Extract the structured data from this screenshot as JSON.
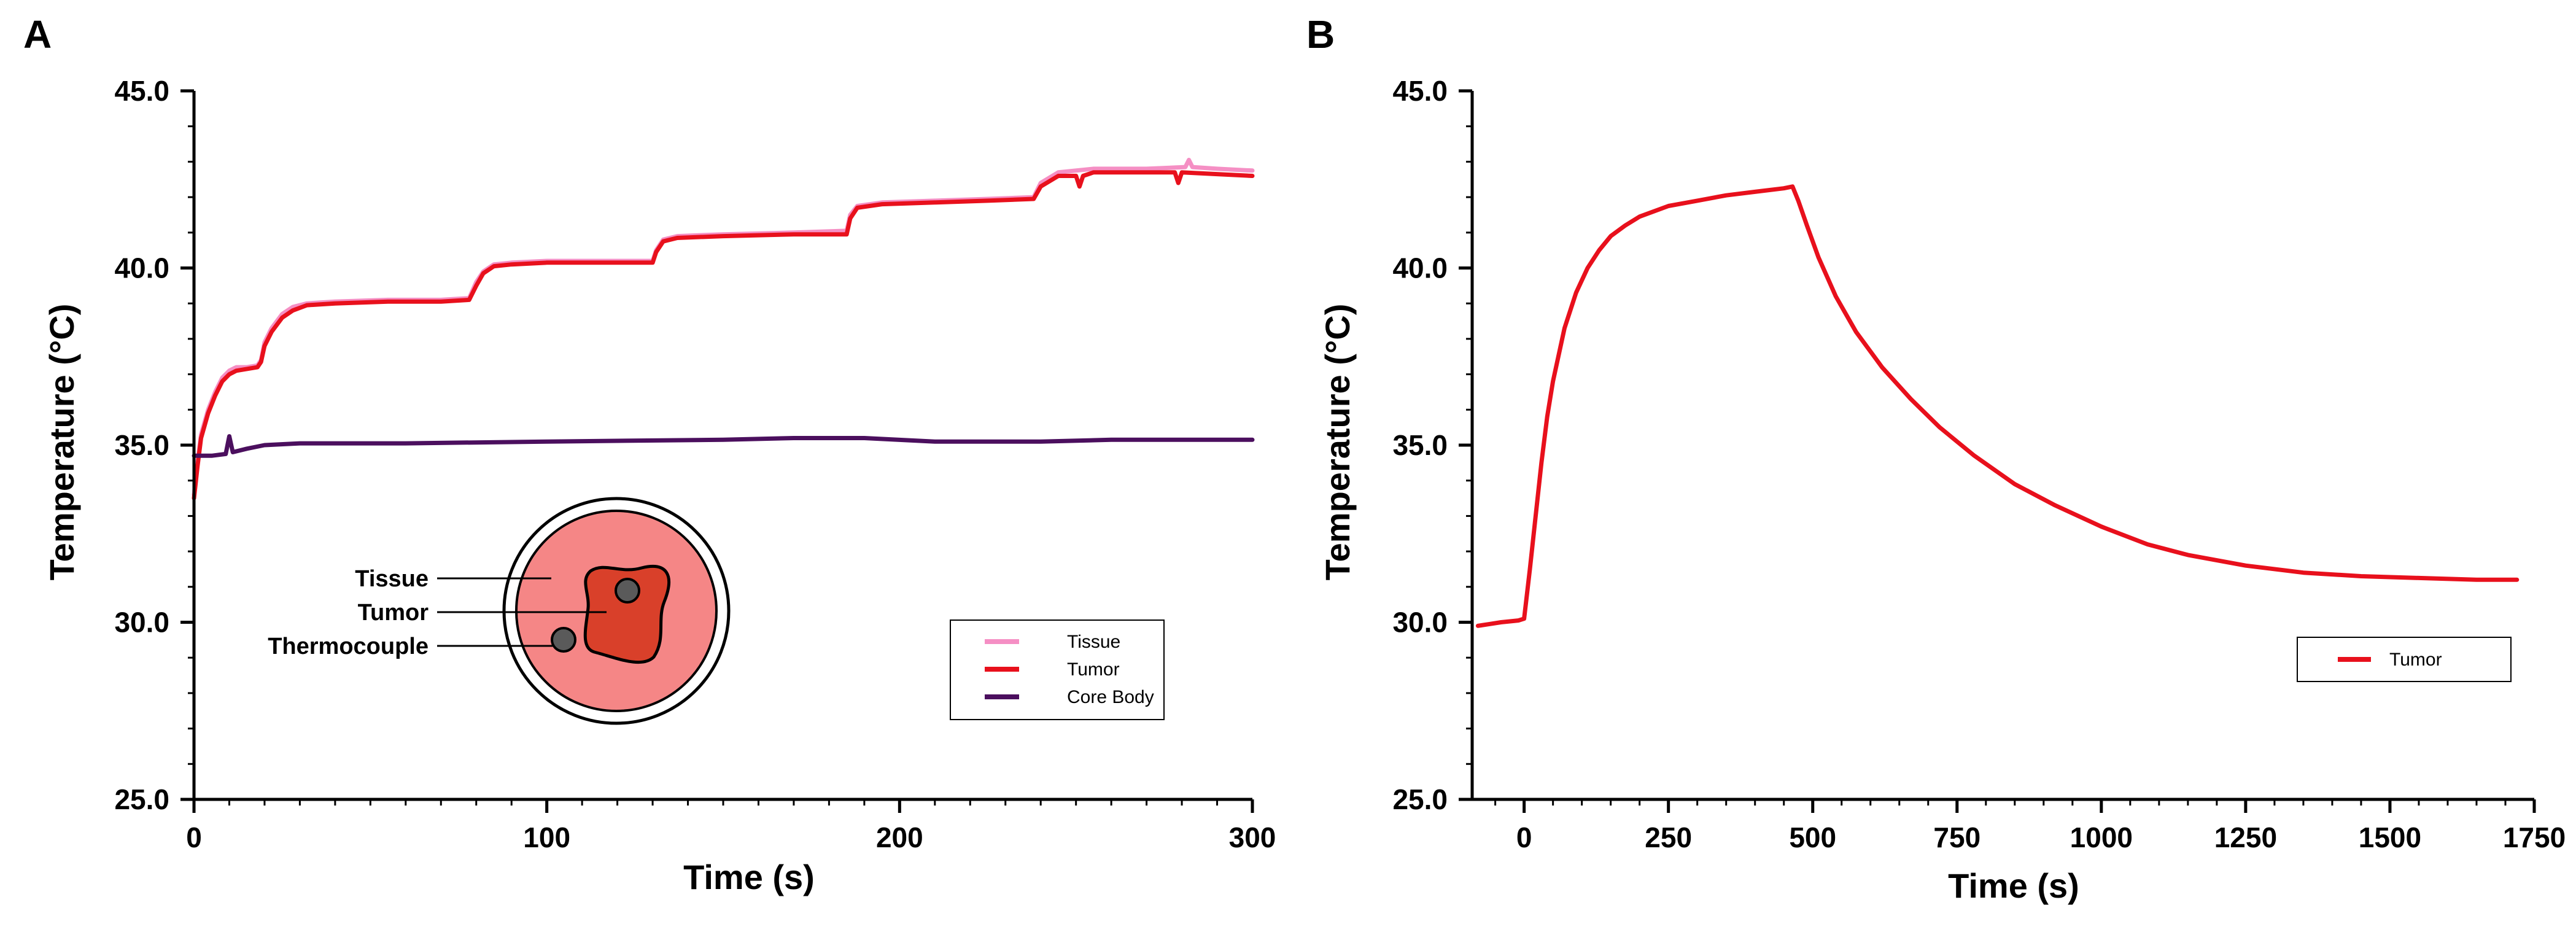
{
  "chart_data": [
    {
      "panel": "A",
      "type": "line",
      "xlabel": "Time (s)",
      "ylabel": "Temperature (°C)",
      "xlim": [
        0,
        300
      ],
      "ylim": [
        25,
        45
      ],
      "xticks": [
        0,
        100,
        200,
        300
      ],
      "xtick_labels": [
        "0",
        "100",
        "200",
        "300"
      ],
      "yticks": [
        25,
        30,
        35,
        40,
        45
      ],
      "ytick_labels": [
        "25.0",
        "30.0",
        "35.0",
        "40.0",
        "45.0"
      ],
      "legend_position": "bottom-right",
      "series": [
        {
          "name": "Tissue",
          "color": "#f58fc4",
          "points": [
            [
              0,
              33.6
            ],
            [
              1,
              34.5
            ],
            [
              2,
              35.3
            ],
            [
              4,
              36.0
            ],
            [
              6,
              36.5
            ],
            [
              8,
              36.9
            ],
            [
              10,
              37.1
            ],
            [
              12,
              37.2
            ],
            [
              15,
              37.2
            ],
            [
              18,
              37.25
            ],
            [
              19,
              37.4
            ],
            [
              20,
              37.9
            ],
            [
              22,
              38.3
            ],
            [
              25,
              38.7
            ],
            [
              28,
              38.9
            ],
            [
              32,
              39.0
            ],
            [
              40,
              39.05
            ],
            [
              55,
              39.1
            ],
            [
              70,
              39.1
            ],
            [
              78,
              39.15
            ],
            [
              80,
              39.6
            ],
            [
              82,
              39.9
            ],
            [
              85,
              40.1
            ],
            [
              90,
              40.15
            ],
            [
              100,
              40.2
            ],
            [
              115,
              40.2
            ],
            [
              130,
              40.2
            ],
            [
              131,
              40.5
            ],
            [
              133,
              40.8
            ],
            [
              137,
              40.9
            ],
            [
              150,
              40.95
            ],
            [
              170,
              41.0
            ],
            [
              185,
              41.05
            ],
            [
              186,
              41.5
            ],
            [
              188,
              41.75
            ],
            [
              195,
              41.85
            ],
            [
              210,
              41.9
            ],
            [
              225,
              41.95
            ],
            [
              238,
              42.0
            ],
            [
              240,
              42.4
            ],
            [
              245,
              42.7
            ],
            [
              255,
              42.8
            ],
            [
              270,
              42.8
            ],
            [
              281,
              42.85
            ],
            [
              282,
              43.05
            ],
            [
              283,
              42.85
            ],
            [
              290,
              42.8
            ],
            [
              300,
              42.75
            ]
          ]
        },
        {
          "name": "Tumor",
          "color": "#e8101c",
          "points": [
            [
              0,
              33.5
            ],
            [
              1,
              34.4
            ],
            [
              2,
              35.2
            ],
            [
              4,
              35.9
            ],
            [
              6,
              36.4
            ],
            [
              8,
              36.8
            ],
            [
              10,
              37.0
            ],
            [
              12,
              37.1
            ],
            [
              15,
              37.15
            ],
            [
              18,
              37.2
            ],
            [
              19,
              37.35
            ],
            [
              20,
              37.8
            ],
            [
              22,
              38.2
            ],
            [
              25,
              38.6
            ],
            [
              28,
              38.8
            ],
            [
              32,
              38.95
            ],
            [
              40,
              39.0
            ],
            [
              55,
              39.05
            ],
            [
              70,
              39.05
            ],
            [
              78,
              39.1
            ],
            [
              80,
              39.5
            ],
            [
              82,
              39.85
            ],
            [
              85,
              40.05
            ],
            [
              90,
              40.1
            ],
            [
              100,
              40.15
            ],
            [
              115,
              40.15
            ],
            [
              130,
              40.15
            ],
            [
              131,
              40.45
            ],
            [
              133,
              40.75
            ],
            [
              137,
              40.85
            ],
            [
              150,
              40.9
            ],
            [
              170,
              40.95
            ],
            [
              185,
              40.95
            ],
            [
              186,
              41.4
            ],
            [
              188,
              41.7
            ],
            [
              195,
              41.8
            ],
            [
              210,
              41.85
            ],
            [
              225,
              41.9
            ],
            [
              238,
              41.95
            ],
            [
              240,
              42.3
            ],
            [
              245,
              42.6
            ],
            [
              250,
              42.6
            ],
            [
              251,
              42.3
            ],
            [
              252,
              42.6
            ],
            [
              255,
              42.7
            ],
            [
              270,
              42.7
            ],
            [
              278,
              42.7
            ],
            [
              279,
              42.4
            ],
            [
              280,
              42.7
            ],
            [
              290,
              42.65
            ],
            [
              300,
              42.6
            ]
          ]
        },
        {
          "name": "Core Body",
          "color": "#4b0f5e",
          "points": [
            [
              0,
              34.7
            ],
            [
              5,
              34.7
            ],
            [
              9,
              34.75
            ],
            [
              10,
              35.25
            ],
            [
              11,
              34.8
            ],
            [
              15,
              34.9
            ],
            [
              20,
              35.0
            ],
            [
              30,
              35.05
            ],
            [
              60,
              35.05
            ],
            [
              100,
              35.1
            ],
            [
              150,
              35.15
            ],
            [
              170,
              35.2
            ],
            [
              190,
              35.2
            ],
            [
              210,
              35.1
            ],
            [
              240,
              35.1
            ],
            [
              260,
              35.15
            ],
            [
              300,
              35.15
            ]
          ]
        }
      ],
      "inset": {
        "labels": [
          "Tissue",
          "Tumor",
          "Thermocouple"
        ],
        "dish_color": "#f58686",
        "tumor_color": "#d9402a",
        "probe_color": "#5a5a5a"
      }
    },
    {
      "panel": "B",
      "type": "line",
      "xlabel": "Time (s)",
      "ylabel": "Temperature (°C)",
      "xlim": [
        -90,
        1750
      ],
      "ylim": [
        25,
        45
      ],
      "xticks": [
        0,
        250,
        500,
        750,
        1000,
        1250,
        1500,
        1750
      ],
      "xtick_labels": [
        "0",
        "250",
        "500",
        "750",
        "1000",
        "1250",
        "1500",
        "1750"
      ],
      "yticks": [
        25,
        30,
        35,
        40,
        45
      ],
      "ytick_labels": [
        "25.0",
        "30.0",
        "35.0",
        "40.0",
        "45.0"
      ],
      "legend_position": "bottom-right",
      "series": [
        {
          "name": "Tumor",
          "color": "#e8101c",
          "points": [
            [
              -80,
              29.9
            ],
            [
              -60,
              29.95
            ],
            [
              -40,
              30.0
            ],
            [
              -10,
              30.05
            ],
            [
              0,
              30.1
            ],
            [
              10,
              31.5
            ],
            [
              20,
              33.0
            ],
            [
              30,
              34.5
            ],
            [
              40,
              35.8
            ],
            [
              50,
              36.8
            ],
            [
              70,
              38.3
            ],
            [
              90,
              39.3
            ],
            [
              110,
              40.0
            ],
            [
              130,
              40.5
            ],
            [
              150,
              40.9
            ],
            [
              175,
              41.2
            ],
            [
              200,
              41.45
            ],
            [
              250,
              41.75
            ],
            [
              300,
              41.9
            ],
            [
              350,
              42.05
            ],
            [
              400,
              42.15
            ],
            [
              450,
              42.25
            ],
            [
              465,
              42.3
            ],
            [
              475,
              41.9
            ],
            [
              490,
              41.2
            ],
            [
              510,
              40.3
            ],
            [
              540,
              39.2
            ],
            [
              575,
              38.2
            ],
            [
              620,
              37.2
            ],
            [
              670,
              36.3
            ],
            [
              720,
              35.5
            ],
            [
              780,
              34.7
            ],
            [
              850,
              33.9
            ],
            [
              920,
              33.3
            ],
            [
              1000,
              32.7
            ],
            [
              1080,
              32.2
            ],
            [
              1150,
              31.9
            ],
            [
              1250,
              31.6
            ],
            [
              1350,
              31.4
            ],
            [
              1450,
              31.3
            ],
            [
              1550,
              31.25
            ],
            [
              1650,
              31.2
            ],
            [
              1720,
              31.2
            ]
          ]
        }
      ]
    }
  ]
}
